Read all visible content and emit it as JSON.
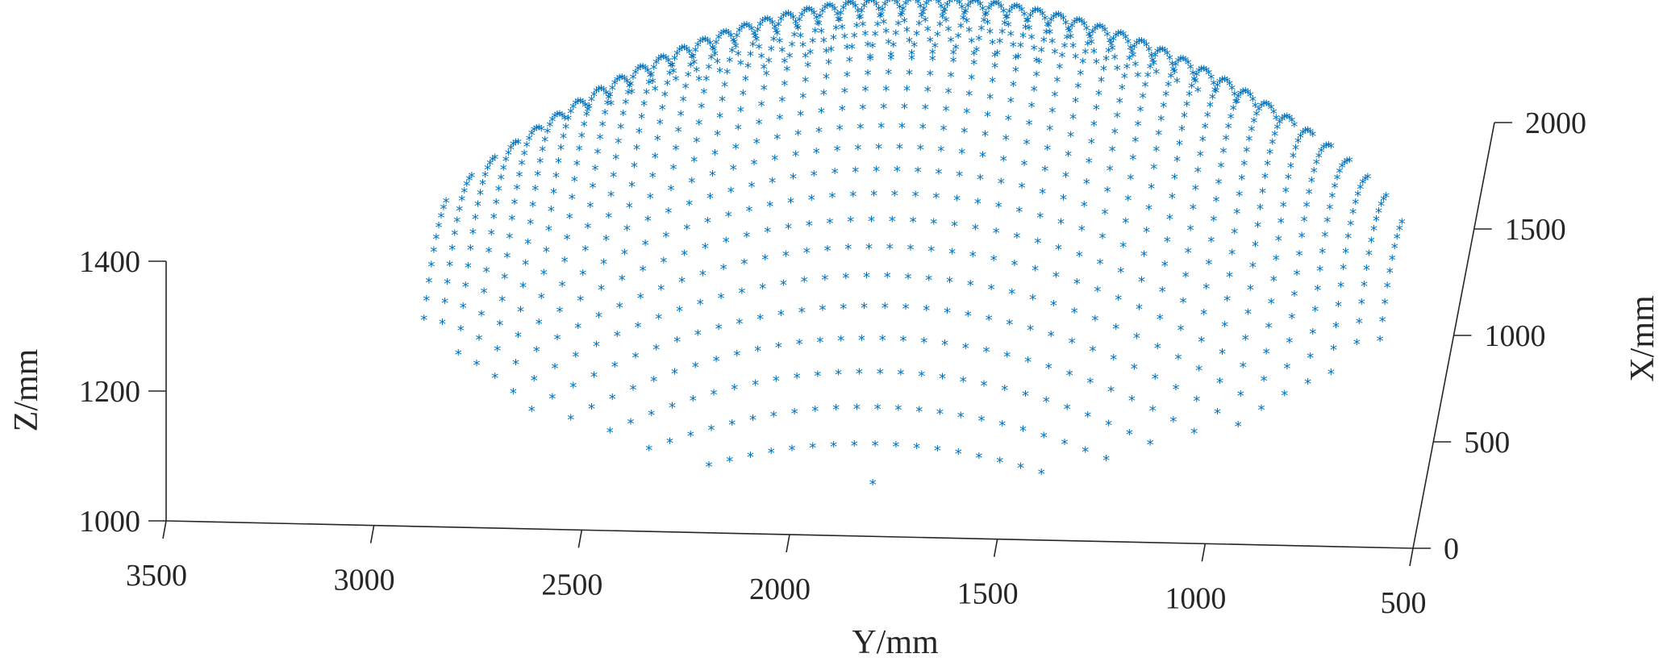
{
  "chart_data": {
    "type": "scatter",
    "projection": "3d",
    "marker": "*",
    "marker_color": "#0072BD",
    "xlabel": "Y/mm",
    "ylabel": "X/mm",
    "zlabel": "Z/mm",
    "y_ticks": [
      "3500",
      "3000",
      "2500",
      "2000",
      "1500",
      "1000",
      "500"
    ],
    "x_ticks": [
      "0",
      "500",
      "1000",
      "1500",
      "2000"
    ],
    "z_ticks": [
      "1000",
      "1200",
      "1400"
    ],
    "ylim": [
      500,
      3500
    ],
    "xlim": [
      0,
      2000
    ],
    "zlim": [
      1000,
      1400
    ],
    "grid": false,
    "series": [
      {
        "description_of_shape": "dome-shaped cloud of points (3D scan of a convex surface)",
        "Y_range": [
          600,
          3000
        ],
        "X_range": [
          0,
          2000
        ],
        "Z_range": [
          1080,
          1420
        ]
      }
    ]
  }
}
